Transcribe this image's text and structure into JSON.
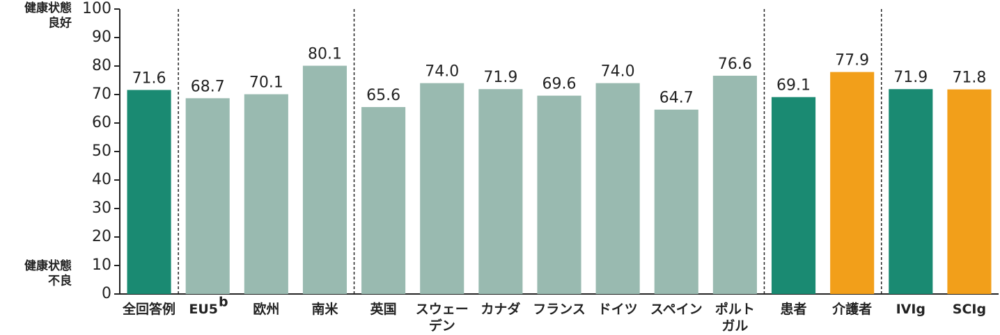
{
  "chart_data": {
    "type": "bar",
    "y_top_label": "健康状態\n良好",
    "y_bottom_label": "健康状態\n不良",
    "categories": [
      "全回答例",
      "EU5",
      "欧州",
      "南米",
      "英国",
      "スウェー\nデン",
      "カナダ",
      "フランス",
      "ドイツ",
      "スペイン",
      "ポルト\nガル",
      "患者",
      "介護者",
      "IVIg",
      "SCIg"
    ],
    "superscripts": [
      null,
      "b",
      null,
      null,
      null,
      null,
      null,
      null,
      null,
      null,
      null,
      null,
      null,
      null,
      null
    ],
    "values": [
      71.6,
      68.7,
      70.1,
      80.1,
      65.6,
      74.0,
      71.9,
      69.6,
      74.0,
      64.7,
      76.6,
      69.1,
      77.9,
      71.9,
      71.8
    ],
    "value_labels": [
      "71.6",
      "68.7",
      "70.1",
      "80.1",
      "65.6",
      "74.0",
      "71.9",
      "69.6",
      "74.0",
      "64.7",
      "76.6",
      "69.1",
      "77.9",
      "71.9",
      "71.8"
    ],
    "colors": [
      "#1a8a72",
      "#99bab0",
      "#99bab0",
      "#99bab0",
      "#99bab0",
      "#99bab0",
      "#99bab0",
      "#99bab0",
      "#99bab0",
      "#99bab0",
      "#99bab0",
      "#1a8a72",
      "#f29f1a",
      "#1a8a72",
      "#f29f1a"
    ],
    "separators_after": [
      0,
      3,
      10,
      12
    ],
    "ylim": [
      0,
      100
    ],
    "yticks": [
      0,
      10,
      20,
      30,
      40,
      50,
      60,
      70,
      80,
      90,
      100
    ]
  }
}
